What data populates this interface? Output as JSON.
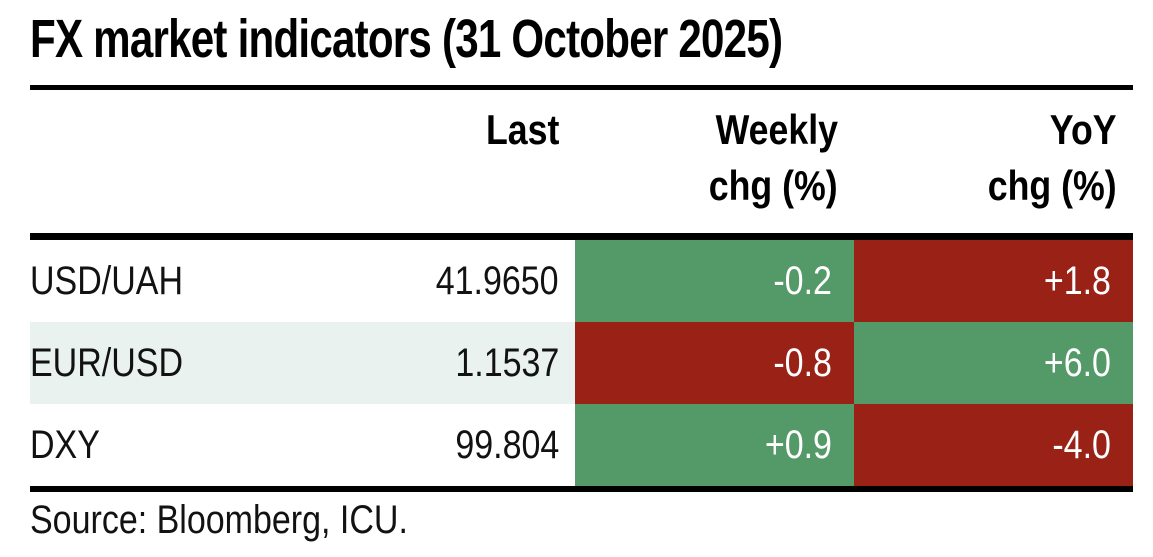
{
  "title": "FX market indicators (31 October 2025)",
  "source": "Source: Bloomberg, ICU.",
  "colors": {
    "positive_green": "#549968",
    "negative_red": "#992116",
    "row_alt": "#e9f2ef",
    "rule_black": "#000000",
    "heat_text": "#ffffff"
  },
  "table": {
    "header": {
      "last": "Last",
      "weekly_line1": "Weekly",
      "weekly_line2": "chg (%)",
      "yoy_line1": "YoY",
      "yoy_line2": "chg (%)"
    },
    "rows": [
      {
        "label": "USD/UAH",
        "last": "41.9650",
        "weekly": "-0.2",
        "weekly_bg": "#549968",
        "yoy": "+1.8",
        "yoy_bg": "#992116"
      },
      {
        "label": "EUR/USD",
        "last": "1.1537",
        "weekly": "-0.8",
        "weekly_bg": "#992116",
        "yoy": "+6.0",
        "yoy_bg": "#549968"
      },
      {
        "label": "DXY",
        "last": "99.804",
        "weekly": "+0.9",
        "weekly_bg": "#549968",
        "yoy": "-4.0",
        "yoy_bg": "#992116"
      }
    ]
  },
  "chart_data": {
    "type": "table",
    "title": "FX market indicators (31 October 2025)",
    "columns": [
      "",
      "Last",
      "Weekly chg (%)",
      "YoY chg (%)"
    ],
    "rows": [
      {
        "indicator": "USD/UAH",
        "last": 41.965,
        "weekly_chg_pct": -0.2,
        "yoy_chg_pct": 1.8
      },
      {
        "indicator": "EUR/USD",
        "last": 1.1537,
        "weekly_chg_pct": -0.8,
        "yoy_chg_pct": 6.0
      },
      {
        "indicator": "DXY",
        "last": 99.804,
        "weekly_chg_pct": 0.9,
        "yoy_chg_pct": -4.0
      }
    ],
    "cell_colors": {
      "weekly": [
        "green",
        "red",
        "green"
      ],
      "yoy": [
        "red",
        "green",
        "red"
      ]
    },
    "source": "Source: Bloomberg, ICU."
  }
}
